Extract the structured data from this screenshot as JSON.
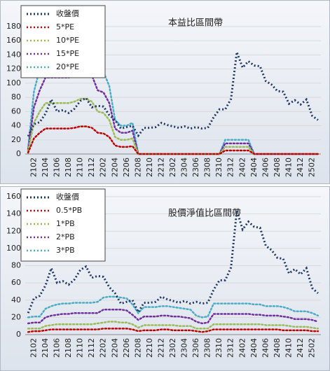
{
  "chart_data": [
    {
      "type": "line",
      "title": "本益比區間帶",
      "categories": [
        null,
        "2102",
        null,
        "2104",
        null,
        "2106",
        null,
        "2108",
        null,
        "2110",
        null,
        "2112",
        null,
        "2202",
        null,
        "2204",
        null,
        "2206",
        null,
        "2208",
        null,
        "2210",
        null,
        "2212",
        null,
        "2302",
        null,
        "2304",
        null,
        "2306",
        null,
        "2308",
        null,
        "2310",
        null,
        "2312",
        null,
        "2402",
        null,
        "2404",
        null,
        "2406",
        null,
        "2408",
        null,
        "2410",
        null,
        "2412",
        null,
        "2502",
        null
      ],
      "ylim": [
        0,
        180
      ],
      "yticks": [
        0,
        20,
        40,
        60,
        80,
        100,
        120,
        140,
        160,
        180
      ],
      "grid": true,
      "legend": "upper left",
      "series": [
        {
          "name": "收盤價",
          "color": "#1f3864",
          "values": [
            25,
            42,
            45,
            57,
            77,
            60,
            62,
            58,
            64,
            75,
            79,
            66,
            68,
            67,
            55,
            48,
            36,
            38,
            40,
            26,
            37,
            37,
            38,
            44,
            41,
            39,
            37,
            39,
            36,
            38,
            36,
            37,
            52,
            63,
            63,
            78,
            144,
            122,
            131,
            125,
            124,
            103,
            98,
            89,
            88,
            71,
            76,
            70,
            77,
            54,
            48
          ]
        },
        {
          "name": "5*PE",
          "color": "#c00000",
          "values": [
            2,
            22,
            30,
            36,
            36,
            36,
            36,
            36,
            37,
            39,
            39,
            37,
            30,
            29,
            24,
            12,
            10,
            10,
            11,
            0,
            0,
            0,
            0,
            0,
            0,
            0,
            0,
            0,
            0,
            0,
            0,
            0,
            0,
            0,
            5,
            5,
            5,
            5,
            5,
            0,
            0,
            0,
            0,
            0,
            0,
            0,
            0,
            0,
            0,
            0,
            0
          ]
        },
        {
          "name": "10*PE",
          "color": "#9bbb59",
          "values": [
            4,
            44,
            60,
            72,
            72,
            72,
            72,
            72,
            74,
            78,
            78,
            74,
            60,
            58,
            48,
            24,
            20,
            20,
            22,
            0,
            0,
            0,
            0,
            0,
            0,
            0,
            0,
            0,
            0,
            0,
            0,
            0,
            0,
            0,
            10,
            10,
            10,
            10,
            10,
            0,
            0,
            0,
            0,
            0,
            0,
            0,
            0,
            0,
            0,
            0,
            0
          ]
        },
        {
          "name": "15*PE",
          "color": "#7030a0",
          "values": [
            6,
            66,
            90,
            108,
            108,
            108,
            108,
            108,
            111,
            117,
            117,
            111,
            90,
            87,
            72,
            36,
            30,
            30,
            33,
            0,
            0,
            0,
            0,
            0,
            0,
            0,
            0,
            0,
            0,
            0,
            0,
            0,
            0,
            0,
            15,
            15,
            15,
            15,
            15,
            0,
            0,
            0,
            0,
            0,
            0,
            0,
            0,
            0,
            0,
            0,
            0
          ]
        },
        {
          "name": "20*PE",
          "color": "#4bacc6",
          "values": [
            8,
            88,
            120,
            144,
            144,
            144,
            144,
            144,
            146,
            146,
            146,
            146,
            120,
            116,
            96,
            48,
            40,
            40,
            44,
            0,
            0,
            0,
            0,
            0,
            0,
            0,
            0,
            0,
            0,
            0,
            0,
            0,
            0,
            0,
            20,
            20,
            20,
            20,
            20,
            0,
            0,
            0,
            0,
            0,
            0,
            0,
            0,
            0,
            0,
            0,
            0
          ]
        }
      ]
    },
    {
      "type": "line",
      "title": "股價淨值比區間帶",
      "categories": [
        null,
        "2102",
        null,
        "2104",
        null,
        "2106",
        null,
        "2108",
        null,
        "2110",
        null,
        "2112",
        null,
        "2202",
        null,
        "2204",
        null,
        "2206",
        null,
        "2208",
        null,
        "2210",
        null,
        "2212",
        null,
        "2302",
        null,
        "2304",
        null,
        "2306",
        null,
        "2308",
        null,
        "2310",
        null,
        "2312",
        null,
        "2402",
        null,
        "2404",
        null,
        "2406",
        null,
        "2408",
        null,
        "2410",
        null,
        "2412",
        null,
        "2502",
        null
      ],
      "ylim": [
        0,
        160
      ],
      "yticks": [
        0,
        20,
        40,
        60,
        80,
        100,
        120,
        140,
        160
      ],
      "grid": true,
      "legend": "upper left",
      "series": [
        {
          "name": "收盤價",
          "color": "#1f3864",
          "values": [
            25,
            42,
            45,
            57,
            77,
            60,
            62,
            58,
            64,
            75,
            79,
            66,
            68,
            67,
            55,
            48,
            36,
            38,
            40,
            26,
            37,
            37,
            38,
            44,
            41,
            39,
            37,
            39,
            36,
            38,
            36,
            37,
            52,
            63,
            63,
            78,
            144,
            122,
            131,
            125,
            124,
            103,
            98,
            89,
            88,
            71,
            76,
            70,
            77,
            54,
            48
          ]
        },
        {
          "name": "0.5*PB",
          "color": "#c00000",
          "values": [
            3,
            4,
            4,
            5,
            6,
            6,
            6,
            6,
            6,
            6,
            6,
            6,
            6,
            7,
            7,
            7,
            7,
            7,
            6,
            4,
            5,
            5,
            5,
            6,
            6,
            5,
            5,
            5,
            5,
            4,
            3,
            4,
            6,
            6,
            6,
            6,
            6,
            6,
            6,
            6,
            6,
            6,
            6,
            6,
            5,
            5,
            5,
            5,
            5,
            4,
            4
          ]
        },
        {
          "name": "1*PB",
          "color": "#9bbb59",
          "values": [
            7,
            7,
            7,
            10,
            11,
            12,
            12,
            12,
            12,
            12,
            12,
            12,
            13,
            14,
            15,
            15,
            14,
            14,
            12,
            8,
            11,
            11,
            11,
            11,
            11,
            11,
            10,
            10,
            10,
            7,
            7,
            7,
            12,
            12,
            12,
            12,
            12,
            12,
            12,
            12,
            12,
            11,
            11,
            11,
            11,
            10,
            9,
            9,
            9,
            8,
            7
          ]
        },
        {
          "name": "2*PB",
          "color": "#7030a0",
          "values": [
            13,
            14,
            14,
            20,
            22,
            23,
            24,
            24,
            25,
            25,
            25,
            25,
            25,
            29,
            29,
            29,
            29,
            28,
            23,
            17,
            21,
            21,
            21,
            22,
            22,
            21,
            21,
            20,
            19,
            15,
            13,
            14,
            24,
            24,
            24,
            24,
            24,
            24,
            24,
            23,
            23,
            22,
            22,
            22,
            21,
            20,
            18,
            18,
            18,
            17,
            15
          ]
        },
        {
          "name": "3*PB",
          "color": "#4bacc6",
          "values": [
            20,
            21,
            21,
            30,
            33,
            35,
            36,
            36,
            37,
            37,
            37,
            37,
            38,
            43,
            44,
            44,
            43,
            42,
            35,
            25,
            32,
            32,
            32,
            33,
            33,
            32,
            31,
            30,
            29,
            22,
            20,
            21,
            36,
            36,
            36,
            36,
            36,
            36,
            36,
            35,
            35,
            33,
            33,
            33,
            32,
            30,
            27,
            27,
            27,
            25,
            22
          ]
        }
      ]
    }
  ]
}
